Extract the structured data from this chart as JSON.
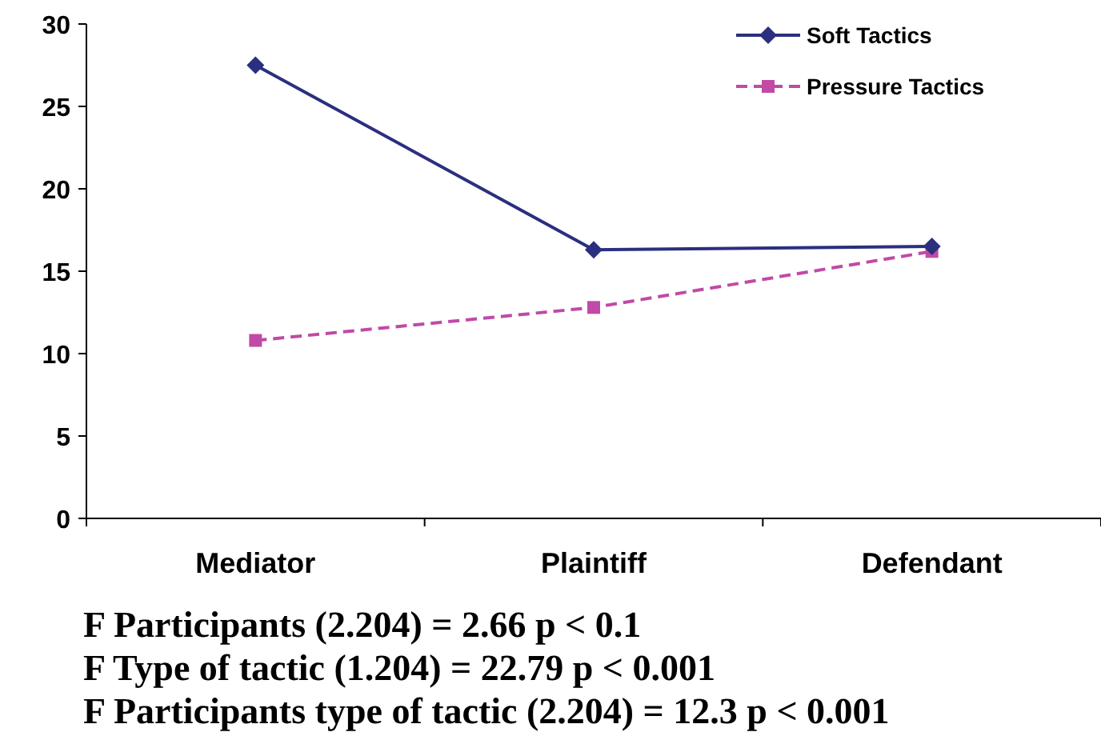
{
  "chart_data": {
    "type": "line",
    "categories": [
      "Mediator",
      "Plaintiff",
      "Defendant"
    ],
    "series": [
      {
        "name": "Soft Tactics",
        "color": "#2b2f7f",
        "values": [
          27.5,
          16.3,
          16.5
        ],
        "marker": "diamond",
        "line_style": "solid"
      },
      {
        "name": "Pressure Tactics",
        "color": "#c04aa6",
        "values": [
          10.8,
          12.8,
          16.2
        ],
        "marker": "square",
        "line_style": "dashed"
      }
    ],
    "ylim": [
      0,
      30
    ],
    "yticks": [
      0,
      5,
      10,
      15,
      20,
      25,
      30
    ],
    "grid": false,
    "legend": "top right",
    "annotations": [
      "F Participants (2.204) = 2.66 p < 0.1",
      "F Type of tactic (1.204) = 22.79 p < 0.001",
      "F Participants type of tactic (2.204) = 12.3 p < 0.001"
    ]
  }
}
